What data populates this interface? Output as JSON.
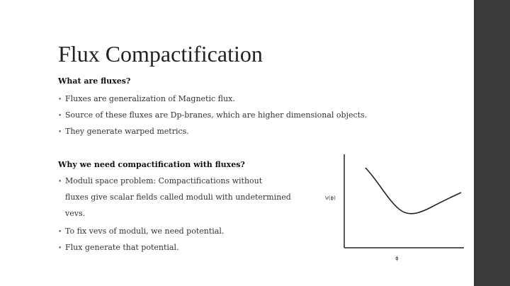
{
  "slide": {
    "title": "Flux Compactification",
    "section1": {
      "heading": "What are fluxes?",
      "bullets": [
        "Fluxes are generalization of Magnetic flux.",
        "Source of these fluxes are Dp-branes, which are higher dimensional objects.",
        "They generate warped metrics."
      ]
    },
    "section2": {
      "heading": "Why we need compactification with fluxes?",
      "bullet1_lines": [
        "Moduli space problem: Compactifications without",
        "fluxes give scalar fields called moduli with undetermined",
        "vevs."
      ],
      "bullets": [
        "To fix vevs of moduli, we need potential.",
        "Flux generate that potential."
      ]
    },
    "bullet_glyph": "•"
  },
  "figure": {
    "y_axis_label": "V(ϕ)",
    "x_axis_label": "ϕ"
  },
  "colors": {
    "background": "#ffffff",
    "sidebar": "#3a3a3a",
    "text": "#333333"
  }
}
